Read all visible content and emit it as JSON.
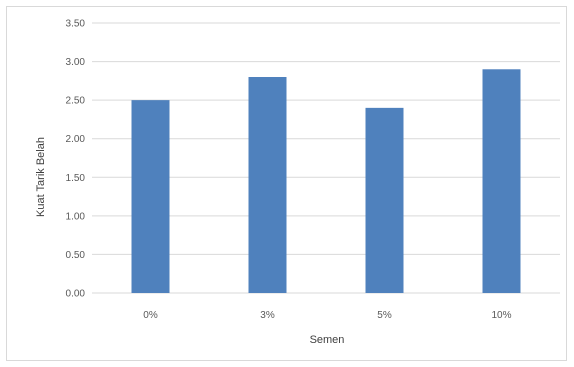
{
  "chart_data": {
    "type": "bar",
    "title": "",
    "xlabel": "Semen",
    "ylabel": "Kuat Tarik Belah",
    "categories": [
      "0%",
      "3%",
      "5%",
      "10%"
    ],
    "series": [
      {
        "values": [
          2.5,
          2.8,
          2.4,
          2.9
        ]
      }
    ],
    "ylim": [
      0,
      3.5
    ],
    "yticks": [
      "0.00",
      "0.50",
      "1.00",
      "1.50",
      "2.00",
      "2.50",
      "3.00",
      "3.50"
    ],
    "grid": true,
    "legend": "none",
    "bar_color": "#4f81bd",
    "grid_color": "#d9d9d9"
  }
}
